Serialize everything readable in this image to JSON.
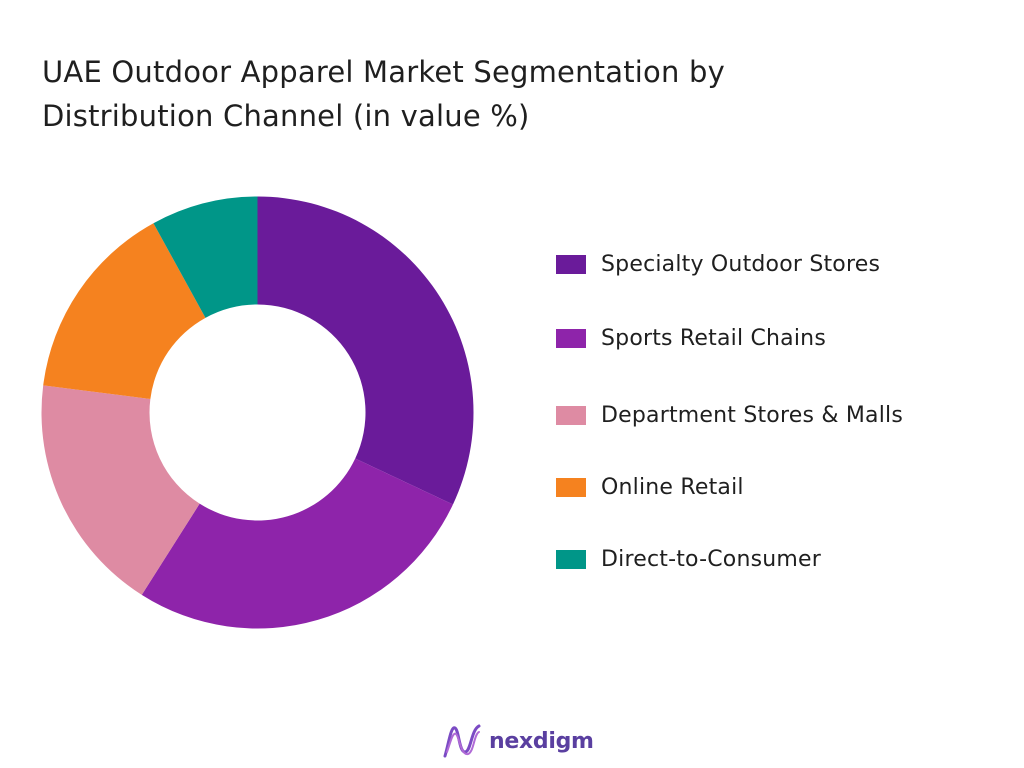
{
  "chart_data": {
    "type": "pie",
    "variant": "donut",
    "title": "UAE Outdoor Apparel Market Segmentation by Distribution Channel (in value %)",
    "title_lines": [
      "UAE Outdoor Apparel Market Segmentation by",
      "Distribution Channel (in value %)"
    ],
    "categories": [
      "Specialty Outdoor Stores",
      "Sports Retail Chains",
      "Department Stores & Malls",
      "Online Retail",
      "Direct-to-Consumer"
    ],
    "values": [
      32,
      27,
      18,
      15,
      8
    ],
    "colors": [
      "#6a1b9a",
      "#8e24aa",
      "#de8ba3",
      "#f5821f",
      "#009688"
    ],
    "unit": "%",
    "legend_position": "right"
  },
  "brand": {
    "name": "nexdigm",
    "color": "#5a3fa0"
  }
}
